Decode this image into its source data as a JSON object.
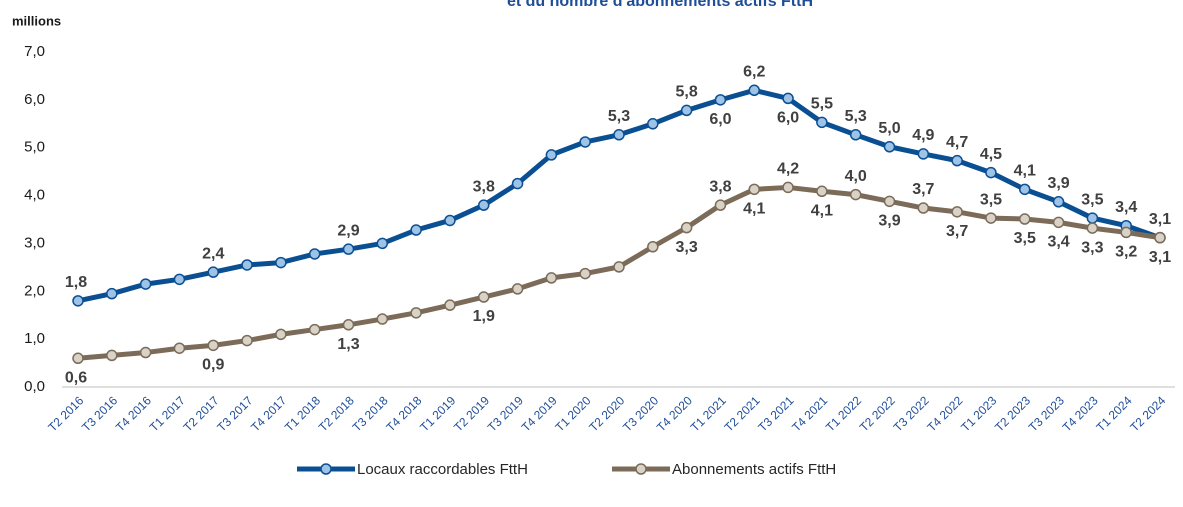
{
  "chart_data": {
    "type": "line",
    "title": "et du nombre d'abonnements actifs FttH",
    "y_label": "millions",
    "categories": [
      "T2 2016",
      "T3 2016",
      "T4 2016",
      "T1 2017",
      "T2 2017",
      "T3 2017",
      "T4 2017",
      "T1 2018",
      "T2 2018",
      "T3 2018",
      "T4 2018",
      "T1 2019",
      "T2 2019",
      "T3 2019",
      "T4 2019",
      "T1 2020",
      "T2 2020",
      "T3 2020",
      "T4 2020",
      "T1 2021",
      "T2 2021",
      "T3 2021",
      "T4 2021",
      "T1 2022",
      "T2 2022",
      "T3 2022",
      "T4 2022",
      "T1 2023",
      "T2 2023",
      "T3 2023",
      "T4 2023",
      "T1 2024",
      "T2 2024"
    ],
    "series": [
      {
        "name": "Locaux raccordables FttH",
        "color": "#0b4f93",
        "marker_fill": "#9dc3e6",
        "values": [
          1.8,
          1.95,
          2.15,
          2.25,
          2.4,
          2.55,
          2.6,
          2.78,
          2.88,
          3.0,
          3.28,
          3.48,
          3.8,
          4.25,
          4.85,
          5.12,
          5.27,
          5.5,
          5.78,
          6.0,
          6.2,
          6.03,
          5.53,
          5.27,
          5.02,
          4.87,
          4.73,
          4.48,
          4.13,
          3.87,
          3.53,
          3.37,
          3.12
        ],
        "value_labels": [
          "1,8",
          null,
          null,
          null,
          "2,4",
          null,
          null,
          null,
          "2,9",
          null,
          null,
          null,
          "3,8",
          null,
          null,
          null,
          "5,3",
          null,
          "5,8",
          "6,0",
          "6,2",
          "6,0",
          "5,5",
          "5,3",
          "5,0",
          "4,9",
          "4,7",
          "4,5",
          "4,1",
          "3,9",
          "3,5",
          "3,4",
          "3,1"
        ]
      },
      {
        "name": "Abonnements actifs FttH",
        "color": "#7b6b58",
        "marker_fill": "#d9d3c7",
        "values": [
          0.6,
          0.66,
          0.72,
          0.81,
          0.87,
          0.97,
          1.1,
          1.2,
          1.3,
          1.42,
          1.55,
          1.71,
          1.88,
          2.05,
          2.28,
          2.37,
          2.51,
          2.93,
          3.33,
          3.8,
          4.13,
          4.17,
          4.09,
          4.02,
          3.88,
          3.74,
          3.66,
          3.53,
          3.51,
          3.44,
          3.32,
          3.23,
          3.12
        ],
        "value_labels": [
          "0,6",
          null,
          null,
          null,
          "0,9",
          null,
          null,
          null,
          "1,3",
          null,
          null,
          null,
          "1,9",
          null,
          null,
          null,
          null,
          null,
          "3,3",
          "3,8",
          "4,1",
          "4,2",
          "4,1",
          "4,0",
          "3,9",
          "3,7",
          "3,7",
          "3,5",
          "3,5",
          "3,4",
          "3,3",
          "3,2",
          "3,1"
        ]
      }
    ],
    "ylim": [
      0,
      7
    ],
    "yticks": [
      {
        "value": 0,
        "label": "0,0"
      },
      {
        "value": 1,
        "label": "1,0"
      },
      {
        "value": 2,
        "label": "2,0"
      },
      {
        "value": 3,
        "label": "3,0"
      },
      {
        "value": 4,
        "label": "4,0"
      },
      {
        "value": 5,
        "label": "5,0"
      },
      {
        "value": 6,
        "label": "6,0"
      },
      {
        "value": 7,
        "label": "7,0"
      }
    ],
    "grid": false,
    "legend": "bottom"
  }
}
